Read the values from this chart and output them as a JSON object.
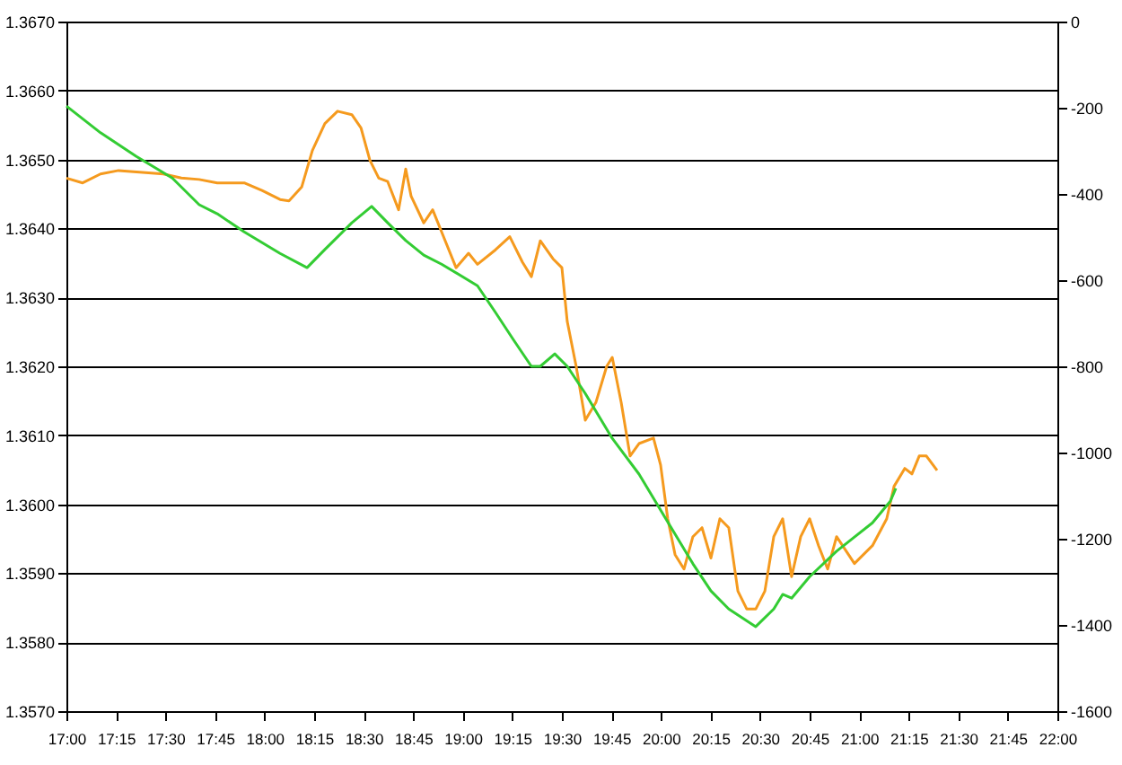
{
  "chart_data": {
    "type": "line",
    "grid": "y",
    "marker": "none",
    "line_style": "solid",
    "xlim": [
      17,
      22
    ],
    "xticks": [
      {
        "value": 17,
        "label": "17:00"
      },
      {
        "value": 17.25,
        "label": "17:15"
      },
      {
        "value": 17.5,
        "label": "17:30"
      },
      {
        "value": 17.75,
        "label": "17:45"
      },
      {
        "value": 18,
        "label": "18:00"
      },
      {
        "value": 18.25,
        "label": "18:15"
      },
      {
        "value": 18.5,
        "label": "18:30"
      },
      {
        "value": 18.75,
        "label": "18:45"
      },
      {
        "value": 19,
        "label": "19:00"
      },
      {
        "value": 19.25,
        "label": "19:15"
      },
      {
        "value": 19.5,
        "label": "19:30"
      },
      {
        "value": 19.75,
        "label": "19:45"
      },
      {
        "value": 20,
        "label": "20:00"
      },
      {
        "value": 20.25,
        "label": "20:15"
      },
      {
        "value": 20.5,
        "label": "20:30"
      },
      {
        "value": 20.75,
        "label": "20:45"
      },
      {
        "value": 21,
        "label": "21:00"
      },
      {
        "value": 21.25,
        "label": "21:15"
      },
      {
        "value": 21.5,
        "label": "21:30"
      },
      {
        "value": 21.75,
        "label": "21:45"
      },
      {
        "value": 22,
        "label": "22:00"
      }
    ],
    "ylim": [
      1.357,
      1.367
    ],
    "yticks": [
      {
        "value": 1.357,
        "label": "1.3570"
      },
      {
        "value": 1.358,
        "label": "1.3580"
      },
      {
        "value": 1.359,
        "label": "1.3590"
      },
      {
        "value": 1.36,
        "label": "1.3600"
      },
      {
        "value": 1.361,
        "label": "1.3610"
      },
      {
        "value": 1.362,
        "label": "1.3620"
      },
      {
        "value": 1.363,
        "label": "1.3630"
      },
      {
        "value": 1.364,
        "label": "1.3640"
      },
      {
        "value": 1.365,
        "label": "1.3650"
      },
      {
        "value": 1.366,
        "label": "1.3660"
      },
      {
        "value": 1.367,
        "label": "1.3670"
      }
    ],
    "y2lim": [
      -1600,
      0
    ],
    "y2ticks": [
      -1600,
      -1400,
      -1200,
      -1000,
      -800,
      -600,
      -400,
      -200,
      0
    ],
    "series": [
      {
        "color": "#f59a1e",
        "x": [
          17.0,
          17.082,
          17.172,
          17.263,
          17.399,
          17.489,
          17.58,
          17.67,
          17.761,
          17.897,
          17.987,
          18.078,
          18.123,
          18.187,
          18.241,
          18.304,
          18.368,
          18.44,
          18.486,
          18.531,
          18.576,
          18.621,
          18.676,
          18.712,
          18.739,
          18.803,
          18.848,
          18.893,
          18.966,
          19.029,
          19.074,
          19.165,
          19.237,
          19.301,
          19.346,
          19.391,
          19.455,
          19.5,
          19.527,
          19.572,
          19.618,
          19.672,
          19.726,
          19.754,
          19.799,
          19.844,
          19.889,
          19.962,
          19.998,
          20.034,
          20.071,
          20.116,
          20.161,
          20.207,
          20.252,
          20.297,
          20.342,
          20.388,
          20.433,
          20.478,
          20.524,
          20.569,
          20.614,
          20.659,
          20.705,
          20.75,
          20.795,
          20.841,
          20.886,
          20.976,
          21.067,
          21.139,
          21.176,
          21.23,
          21.266,
          21.303,
          21.339,
          21.393
        ],
        "values": [
          1.36473,
          1.36466,
          1.36479,
          1.36484,
          1.36481,
          1.36479,
          1.36473,
          1.36471,
          1.36466,
          1.36466,
          1.36455,
          1.36442,
          1.3644,
          1.3646,
          1.36513,
          1.36552,
          1.3657,
          1.36565,
          1.36546,
          1.36499,
          1.36473,
          1.36468,
          1.36427,
          1.36486,
          1.36447,
          1.36408,
          1.36427,
          1.36395,
          1.36343,
          1.36364,
          1.36348,
          1.36369,
          1.36388,
          1.36351,
          1.3633,
          1.36382,
          1.36356,
          1.36343,
          1.36265,
          1.362,
          1.36122,
          1.36148,
          1.362,
          1.36213,
          1.36148,
          1.3607,
          1.36088,
          1.36096,
          1.36057,
          1.35979,
          1.35927,
          1.35906,
          1.35953,
          1.35966,
          1.35922,
          1.35979,
          1.35966,
          1.35874,
          1.35848,
          1.35848,
          1.35874,
          1.35953,
          1.35979,
          1.35895,
          1.35953,
          1.35979,
          1.3594,
          1.35906,
          1.35953,
          1.35914,
          1.3594,
          1.35979,
          1.36026,
          1.36052,
          1.36044,
          1.3607,
          1.3607,
          1.36049
        ]
      },
      {
        "color": "#33cc33",
        "axis": "y2",
        "x": [
          17.0,
          17.172,
          17.353,
          17.534,
          17.67,
          17.761,
          17.897,
          18.078,
          18.214,
          18.304,
          18.44,
          18.54,
          18.621,
          18.712,
          18.803,
          18.893,
          19.074,
          19.165,
          19.255,
          19.346,
          19.391,
          19.464,
          19.527,
          19.618,
          19.754,
          19.889,
          20.025,
          20.161,
          20.252,
          20.342,
          20.478,
          20.569,
          20.614,
          20.659,
          20.75,
          20.886,
          20.976,
          21.067,
          21.157,
          21.185
        ],
        "values": [
          -196,
          -258,
          -313,
          -363,
          -425,
          -446,
          -488,
          -538,
          -571,
          -529,
          -467,
          -429,
          -467,
          -508,
          -542,
          -563,
          -613,
          -675,
          -738,
          -800,
          -800,
          -771,
          -800,
          -863,
          -967,
          -1050,
          -1154,
          -1258,
          -1321,
          -1363,
          -1404,
          -1363,
          -1329,
          -1338,
          -1288,
          -1229,
          -1196,
          -1163,
          -1113,
          -1083
        ]
      }
    ]
  }
}
